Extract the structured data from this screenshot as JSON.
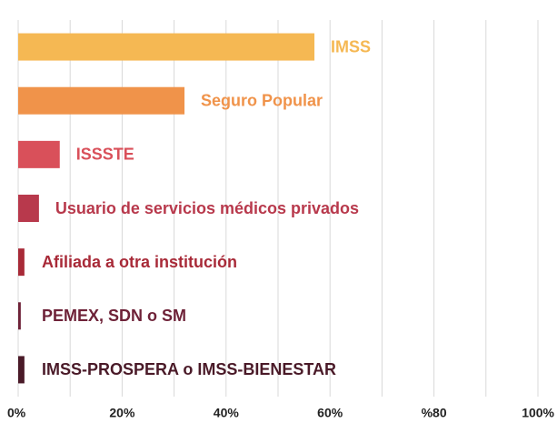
{
  "chart_data": {
    "type": "barh",
    "categories": [
      "IMSS",
      "Seguro Popular",
      "ISSSTE",
      "Usuario de servicios médicos privados",
      "Afiliada a otra institución",
      "PEMEX, SDN o SM",
      "IMSS-PROSPERA o IMSS-BIENESTAR"
    ],
    "values": [
      57,
      32,
      8,
      4,
      1.2,
      0.5,
      1.2
    ],
    "colors": [
      "#f5b853",
      "#f0934a",
      "#d9505a",
      "#b8394c",
      "#a82a38",
      "#6e2238",
      "#4a1a28"
    ],
    "xlim": [
      0,
      100
    ],
    "xticks": [
      {
        "value": 0,
        "label": "0%"
      },
      {
        "value": 20,
        "label": "20%"
      },
      {
        "value": 40,
        "label": "40%"
      },
      {
        "value": 60,
        "label": "60%"
      },
      {
        "value": 80,
        "label": "%80"
      },
      {
        "value": 100,
        "label": "100%"
      }
    ],
    "minor_xticks": [
      10,
      30,
      50,
      70,
      90
    ],
    "grid": true
  }
}
